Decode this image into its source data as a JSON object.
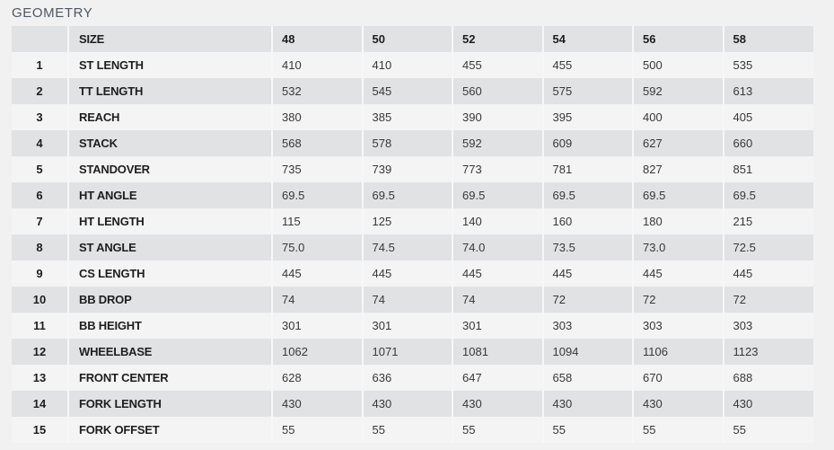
{
  "title": "GEOMETRY",
  "table": {
    "size_label": "SIZE",
    "sizes": [
      "48",
      "50",
      "52",
      "54",
      "56",
      "58"
    ],
    "rows": [
      {
        "num": "1",
        "label": "ST LENGTH",
        "values": [
          "410",
          "410",
          "455",
          "455",
          "500",
          "535"
        ]
      },
      {
        "num": "2",
        "label": "TT LENGTH",
        "values": [
          "532",
          "545",
          "560",
          "575",
          "592",
          "613"
        ]
      },
      {
        "num": "3",
        "label": "REACH",
        "values": [
          "380",
          "385",
          "390",
          "395",
          "400",
          "405"
        ]
      },
      {
        "num": "4",
        "label": "STACK",
        "values": [
          "568",
          "578",
          "592",
          "609",
          "627",
          "660"
        ]
      },
      {
        "num": "5",
        "label": "STANDOVER",
        "values": [
          "735",
          "739",
          "773",
          "781",
          "827",
          "851"
        ]
      },
      {
        "num": "6",
        "label": "HT ANGLE",
        "values": [
          "69.5",
          "69.5",
          "69.5",
          "69.5",
          "69.5",
          "69.5"
        ]
      },
      {
        "num": "7",
        "label": "HT LENGTH",
        "values": [
          "115",
          "125",
          "140",
          "160",
          "180",
          "215"
        ]
      },
      {
        "num": "8",
        "label": "ST ANGLE",
        "values": [
          "75.0",
          "74.5",
          "74.0",
          "73.5",
          "73.0",
          "72.5"
        ]
      },
      {
        "num": "9",
        "label": "CS LENGTH",
        "values": [
          "445",
          "445",
          "445",
          "445",
          "445",
          "445"
        ]
      },
      {
        "num": "10",
        "label": "BB DROP",
        "values": [
          "74",
          "74",
          "74",
          "72",
          "72",
          "72"
        ]
      },
      {
        "num": "11",
        "label": "BB HEIGHT",
        "values": [
          "301",
          "301",
          "301",
          "303",
          "303",
          "303"
        ]
      },
      {
        "num": "12",
        "label": "WHEELBASE",
        "values": [
          "1062",
          "1071",
          "1081",
          "1094",
          "1106",
          "1123"
        ]
      },
      {
        "num": "13",
        "label": "FRONT CENTER",
        "values": [
          "628",
          "636",
          "647",
          "658",
          "670",
          "688"
        ]
      },
      {
        "num": "14",
        "label": "FORK LENGTH",
        "values": [
          "430",
          "430",
          "430",
          "430",
          "430",
          "430"
        ]
      },
      {
        "num": "15",
        "label": "FORK OFFSET",
        "values": [
          "55",
          "55",
          "55",
          "55",
          "55",
          "55"
        ]
      }
    ]
  },
  "colors": {
    "page_bg": "#f1f1f2",
    "row_dark": "#e1e2e4",
    "row_light": "#f4f4f5",
    "separator": "#f6f7f8",
    "title_text": "#4b5862",
    "label_text": "#1e1e1e",
    "value_text": "#383838"
  }
}
